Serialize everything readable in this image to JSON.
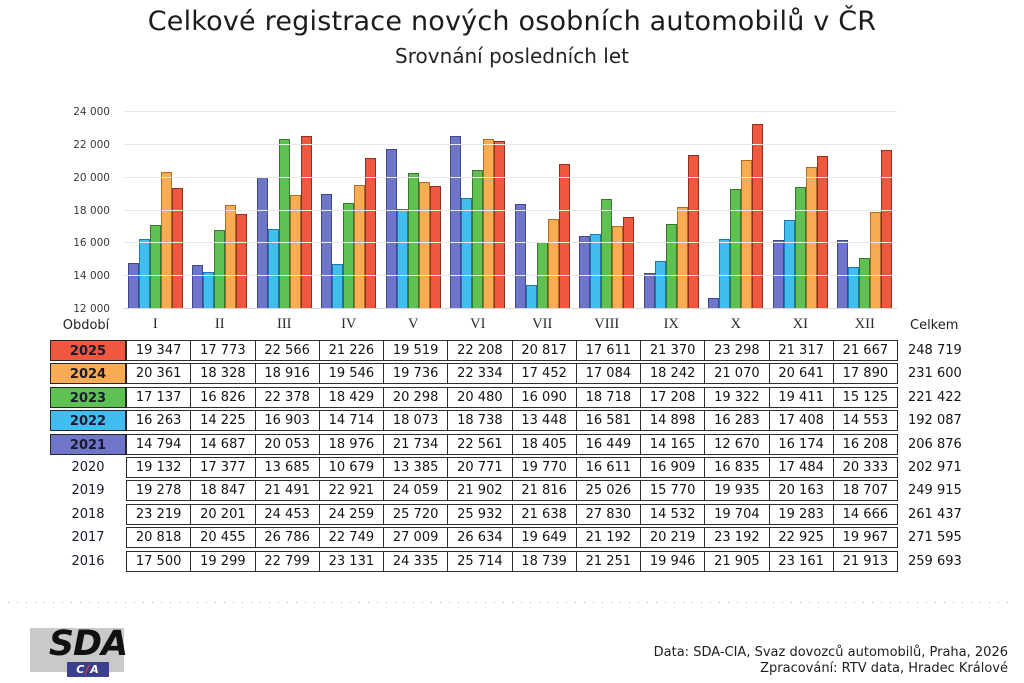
{
  "title": "Celkové registrace nových osobních automobilů v ČR",
  "subtitle": "Srovnání posledních let",
  "period_label": "Období",
  "total_label": "Celkem",
  "months": [
    "I",
    "II",
    "III",
    "IV",
    "V",
    "VI",
    "VII",
    "VIII",
    "IX",
    "X",
    "XI",
    "XII"
  ],
  "chart_data": {
    "type": "bar",
    "title": "Celkové registrace nových osobních automobilů v ČR",
    "subtitle": "Srovnání posledních let",
    "categories": [
      "I",
      "II",
      "III",
      "IV",
      "V",
      "VI",
      "VII",
      "VIII",
      "IX",
      "X",
      "XI",
      "XII"
    ],
    "ylim": [
      12000,
      24000
    ],
    "yticks": [
      12000,
      14000,
      16000,
      18000,
      20000,
      22000,
      24000
    ],
    "grid": true,
    "legend_position": "table-below",
    "series": [
      {
        "name": "2021",
        "color": "#6F75C9",
        "border": "#3D4A86",
        "values": [
          14794,
          14687,
          20053,
          18976,
          21734,
          22561,
          18405,
          16449,
          14165,
          12670,
          16174,
          16208
        ]
      },
      {
        "name": "2022",
        "color": "#41BEEF",
        "border": "#1C7BA8",
        "values": [
          16263,
          14225,
          16903,
          14714,
          18073,
          18738,
          13448,
          16581,
          14898,
          16283,
          17408,
          14553
        ]
      },
      {
        "name": "2023",
        "color": "#5EC152",
        "border": "#36752E",
        "values": [
          17137,
          16826,
          22378,
          18429,
          20298,
          20480,
          16090,
          18718,
          17208,
          19322,
          19411,
          15125
        ]
      },
      {
        "name": "2024",
        "color": "#F9AC52",
        "border": "#B06C1E",
        "values": [
          20361,
          18328,
          18916,
          19546,
          19736,
          22334,
          17452,
          17084,
          18242,
          21070,
          20641,
          17890
        ]
      },
      {
        "name": "2025",
        "color": "#F0573F",
        "border": "#92301F",
        "values": [
          19347,
          17773,
          22566,
          21226,
          19519,
          22208,
          20817,
          17611,
          21370,
          23298,
          21317,
          21667
        ]
      }
    ]
  },
  "table": {
    "rows": [
      {
        "year": "2025",
        "color": "#F0573F",
        "values": [
          19347,
          17773,
          22566,
          21226,
          19519,
          22208,
          20817,
          17611,
          21370,
          23298,
          21317,
          21667
        ],
        "total": 248719
      },
      {
        "year": "2024",
        "color": "#F9AC52",
        "values": [
          20361,
          18328,
          18916,
          19546,
          19736,
          22334,
          17452,
          17084,
          18242,
          21070,
          20641,
          17890
        ],
        "total": 231600
      },
      {
        "year": "2023",
        "color": "#5EC152",
        "values": [
          17137,
          16826,
          22378,
          18429,
          20298,
          20480,
          16090,
          18718,
          17208,
          19322,
          19411,
          15125
        ],
        "total": 221422
      },
      {
        "year": "2022",
        "color": "#41BEEF",
        "values": [
          16263,
          14225,
          16903,
          14714,
          18073,
          18738,
          13448,
          16581,
          14898,
          16283,
          17408,
          14553
        ],
        "total": 192087
      },
      {
        "year": "2021",
        "color": "#6F75C9",
        "values": [
          14794,
          14687,
          20053,
          18976,
          21734,
          22561,
          18405,
          16449,
          14165,
          12670,
          16174,
          16208
        ],
        "total": 206876
      },
      {
        "year": "2020",
        "color": null,
        "values": [
          19132,
          17377,
          13685,
          10679,
          13385,
          20771,
          19770,
          16611,
          16909,
          16835,
          17484,
          20333
        ],
        "total": 202971
      },
      {
        "year": "2019",
        "color": null,
        "values": [
          19278,
          18847,
          21491,
          22921,
          24059,
          21902,
          21816,
          25026,
          15770,
          19935,
          20163,
          18707
        ],
        "total": 249915
      },
      {
        "year": "2018",
        "color": null,
        "values": [
          23219,
          20201,
          24453,
          24259,
          25720,
          25932,
          21638,
          27830,
          14532,
          19704,
          19283,
          14666
        ],
        "total": 261437
      },
      {
        "year": "2017",
        "color": null,
        "values": [
          20818,
          20455,
          26786,
          22749,
          27009,
          26634,
          19649,
          21192,
          20219,
          23192,
          22925,
          19967
        ],
        "total": 271595
      },
      {
        "year": "2016",
        "color": null,
        "values": [
          17500,
          19299,
          22799,
          23131,
          24335,
          25714,
          18739,
          21251,
          19946,
          21905,
          23161,
          21913
        ],
        "total": 259693
      }
    ]
  },
  "footer": {
    "line1": "Data: SDA-CIA, Svaz dovozců automobilů, Praha, 2026",
    "line2": "Zpracování: RTV data, Hradec Králové"
  },
  "logo": {
    "main": "SDA",
    "sub_left": "C",
    "sub_slash": "/",
    "sub_right": "A",
    "sub_bg": "#3A3F8F",
    "slash_color": "#E8392B"
  }
}
